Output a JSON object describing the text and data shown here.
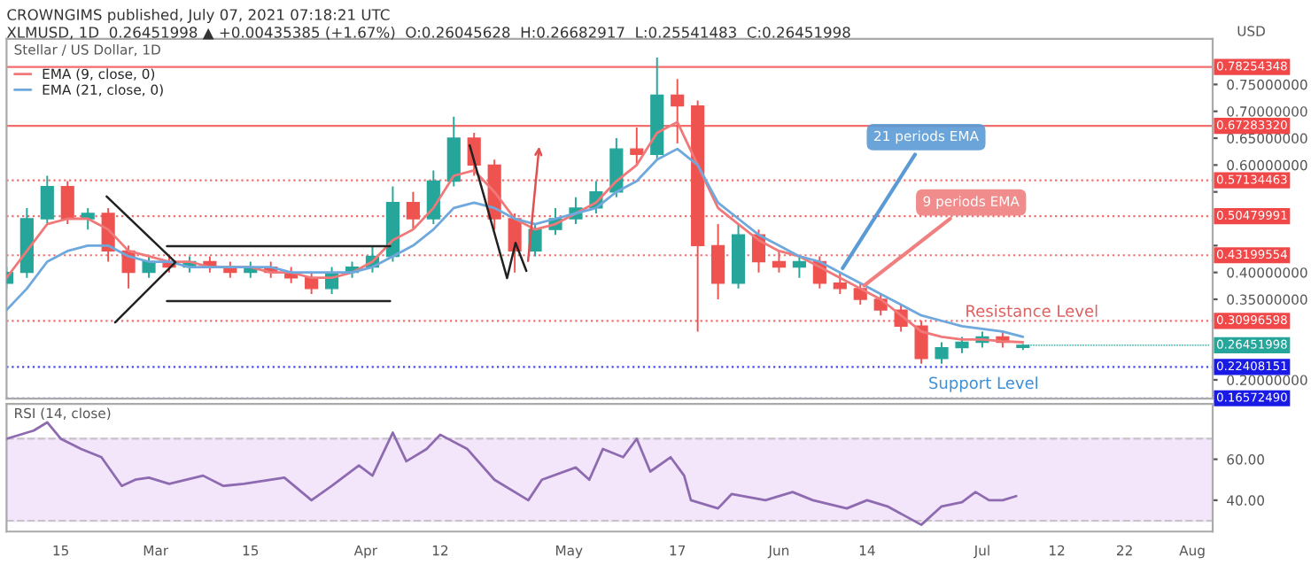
{
  "chart_data": [
    {
      "type": "candlestick",
      "title": "CROWNGIMS published, July 07, 2021 07:18:21 UTC",
      "subtitle": "XLMUSD, 1D  0.26451998 ▲ +0.00435385 (+1.67%)  O:0.26045628  H:0.26682917  L:0.25541483  C:0.26451998",
      "ylabel": "USD",
      "x": [
        "2021-02-07",
        "2021-02-10",
        "2021-02-13",
        "2021-02-16",
        "2021-02-19",
        "2021-02-22",
        "2021-02-25",
        "2021-02-28",
        "2021-03-03",
        "2021-03-06",
        "2021-03-09",
        "2021-03-12",
        "2021-03-15",
        "2021-03-18",
        "2021-03-21",
        "2021-03-24",
        "2021-03-27",
        "2021-03-30",
        "2021-04-02",
        "2021-04-05",
        "2021-04-08",
        "2021-04-11",
        "2021-04-14",
        "2021-04-17",
        "2021-04-20",
        "2021-04-23",
        "2021-04-26",
        "2021-04-29",
        "2021-05-02",
        "2021-05-05",
        "2021-05-08",
        "2021-05-11",
        "2021-05-14",
        "2021-05-17",
        "2021-05-20",
        "2021-05-23",
        "2021-05-26",
        "2021-05-29",
        "2021-06-01",
        "2021-06-04",
        "2021-06-07",
        "2021-06-10",
        "2021-06-13",
        "2021-06-16",
        "2021-06-19",
        "2021-06-22",
        "2021-06-25",
        "2021-06-28",
        "2021-07-01",
        "2021-07-04",
        "2021-07-07"
      ],
      "ohlc": [
        [
          0.38,
          0.41,
          0.37,
          0.4
        ],
        [
          0.4,
          0.52,
          0.39,
          0.5
        ],
        [
          0.5,
          0.58,
          0.49,
          0.56
        ],
        [
          0.56,
          0.57,
          0.49,
          0.5
        ],
        [
          0.5,
          0.52,
          0.48,
          0.51
        ],
        [
          0.51,
          0.52,
          0.42,
          0.44
        ],
        [
          0.44,
          0.45,
          0.37,
          0.4
        ],
        [
          0.4,
          0.43,
          0.39,
          0.42
        ],
        [
          0.42,
          0.43,
          0.4,
          0.41
        ],
        [
          0.41,
          0.43,
          0.4,
          0.42
        ],
        [
          0.42,
          0.43,
          0.4,
          0.41
        ],
        [
          0.41,
          0.42,
          0.39,
          0.4
        ],
        [
          0.4,
          0.42,
          0.39,
          0.41
        ],
        [
          0.41,
          0.42,
          0.39,
          0.4
        ],
        [
          0.4,
          0.41,
          0.38,
          0.39
        ],
        [
          0.39,
          0.4,
          0.36,
          0.37
        ],
        [
          0.37,
          0.41,
          0.36,
          0.4
        ],
        [
          0.4,
          0.42,
          0.39,
          0.41
        ],
        [
          0.41,
          0.45,
          0.4,
          0.43
        ],
        [
          0.43,
          0.56,
          0.42,
          0.53
        ],
        [
          0.53,
          0.55,
          0.48,
          0.5
        ],
        [
          0.5,
          0.59,
          0.49,
          0.57
        ],
        [
          0.57,
          0.69,
          0.56,
          0.65
        ],
        [
          0.65,
          0.66,
          0.58,
          0.6
        ],
        [
          0.6,
          0.61,
          0.48,
          0.5
        ],
        [
          0.5,
          0.51,
          0.4,
          0.44
        ],
        [
          0.44,
          0.49,
          0.43,
          0.48
        ],
        [
          0.48,
          0.52,
          0.47,
          0.5
        ],
        [
          0.5,
          0.54,
          0.49,
          0.52
        ],
        [
          0.52,
          0.57,
          0.51,
          0.55
        ],
        [
          0.55,
          0.65,
          0.54,
          0.63
        ],
        [
          0.63,
          0.67,
          0.6,
          0.62
        ],
        [
          0.62,
          0.8,
          0.61,
          0.73
        ],
        [
          0.73,
          0.76,
          0.64,
          0.71
        ],
        [
          0.71,
          0.72,
          0.29,
          0.45
        ],
        [
          0.45,
          0.49,
          0.35,
          0.38
        ],
        [
          0.38,
          0.49,
          0.37,
          0.47
        ],
        [
          0.47,
          0.48,
          0.4,
          0.42
        ],
        [
          0.42,
          0.44,
          0.4,
          0.41
        ],
        [
          0.41,
          0.43,
          0.39,
          0.42
        ],
        [
          0.42,
          0.43,
          0.37,
          0.38
        ],
        [
          0.38,
          0.4,
          0.36,
          0.37
        ],
        [
          0.37,
          0.38,
          0.34,
          0.35
        ],
        [
          0.35,
          0.36,
          0.32,
          0.33
        ],
        [
          0.33,
          0.34,
          0.29,
          0.3
        ],
        [
          0.3,
          0.31,
          0.23,
          0.24
        ],
        [
          0.24,
          0.27,
          0.23,
          0.26
        ],
        [
          0.26,
          0.28,
          0.25,
          0.27
        ],
        [
          0.27,
          0.29,
          0.26,
          0.28
        ],
        [
          0.28,
          0.29,
          0.26,
          0.27
        ],
        [
          0.26045628,
          0.26682917,
          0.25541483,
          0.26451998
        ]
      ],
      "colors": [
        "#26a69a",
        "#26a69a",
        "#26a69a",
        "#ef5350",
        "#26a69a",
        "#ef5350",
        "#ef5350",
        "#26a69a",
        "#ef5350",
        "#26a69a",
        "#ef5350",
        "#ef5350",
        "#26a69a",
        "#ef5350",
        "#ef5350",
        "#ef5350",
        "#26a69a",
        "#26a69a",
        "#26a69a",
        "#26a69a",
        "#ef5350",
        "#26a69a",
        "#26a69a",
        "#ef5350",
        "#ef5350",
        "#ef5350",
        "#26a69a",
        "#26a69a",
        "#26a69a",
        "#26a69a",
        "#26a69a",
        "#ef5350",
        "#26a69a",
        "#ef5350",
        "#ef5350",
        "#ef5350",
        "#26a69a",
        "#ef5350",
        "#ef5350",
        "#26a69a",
        "#ef5350",
        "#ef5350",
        "#ef5350",
        "#ef5350",
        "#ef5350",
        "#ef5350",
        "#26a69a",
        "#26a69a",
        "#26a69a",
        "#ef5350",
        "#26a69a"
      ],
      "series": [
        {
          "type": "line",
          "name": "EMA (9, close, 0)",
          "color": "#f07878",
          "values": [
            0.39,
            0.44,
            0.49,
            0.5,
            0.5,
            0.48,
            0.44,
            0.43,
            0.42,
            0.42,
            0.41,
            0.41,
            0.41,
            0.4,
            0.4,
            0.39,
            0.39,
            0.4,
            0.42,
            0.46,
            0.48,
            0.52,
            0.58,
            0.59,
            0.55,
            0.5,
            0.48,
            0.49,
            0.51,
            0.53,
            0.57,
            0.6,
            0.66,
            0.68,
            0.6,
            0.52,
            0.49,
            0.46,
            0.44,
            0.43,
            0.41,
            0.39,
            0.37,
            0.35,
            0.32,
            0.29,
            0.28,
            0.275,
            0.275,
            0.272,
            0.27
          ]
        },
        {
          "type": "line",
          "name": "EMA (21, close, 0)",
          "color": "#6fa8dc",
          "values": [
            0.33,
            0.37,
            0.42,
            0.44,
            0.45,
            0.45,
            0.43,
            0.42,
            0.42,
            0.41,
            0.41,
            0.41,
            0.41,
            0.41,
            0.4,
            0.4,
            0.4,
            0.4,
            0.41,
            0.43,
            0.45,
            0.48,
            0.52,
            0.53,
            0.52,
            0.5,
            0.49,
            0.5,
            0.51,
            0.52,
            0.55,
            0.57,
            0.61,
            0.63,
            0.6,
            0.53,
            0.5,
            0.47,
            0.45,
            0.43,
            0.42,
            0.4,
            0.38,
            0.36,
            0.34,
            0.32,
            0.31,
            0.3,
            0.295,
            0.29,
            0.28
          ]
        }
      ],
      "xlim": [
        "2021-02-07",
        "2021-08-04"
      ],
      "ylim": [
        0.165,
        0.835
      ],
      "yticks": [
        {
          "value": 0.75,
          "label": "0.75000000"
        },
        {
          "value": 0.7,
          "label": "0.70000000"
        },
        {
          "value": 0.65,
          "label": "0.65000000"
        },
        {
          "value": 0.6,
          "label": "0.60000000"
        },
        {
          "value": 0.55,
          "label": null
        },
        {
          "value": 0.45,
          "label": null
        },
        {
          "value": 0.4,
          "label": "0.40000000"
        },
        {
          "value": 0.35,
          "label": "0.35000000"
        },
        {
          "value": 0.2,
          "label": "0.20000000"
        }
      ],
      "tick_labels": "y",
      "legend": "top left",
      "ref_lines": [
        {
          "axis": "y",
          "value": 0.78254348,
          "label": "0.78254348",
          "color": "#f04848",
          "line_style": "solid"
        },
        {
          "axis": "y",
          "value": 0.6728332,
          "label": "0.67283320",
          "color": "#f04848",
          "line_style": "solid"
        },
        {
          "axis": "y",
          "value": 0.57134463,
          "label": "0.57134463",
          "color": "#f04848",
          "line_style": "dotted"
        },
        {
          "axis": "y",
          "value": 0.50479991,
          "label": "0.50479991",
          "color": "#f04848",
          "line_style": "dotted"
        },
        {
          "axis": "y",
          "value": 0.43199554,
          "label": "0.43199554",
          "color": "#f04848",
          "line_style": "dotted"
        },
        {
          "axis": "y",
          "value": 0.30996598,
          "label": "0.30996598",
          "color": "#f04848",
          "line_style": "dotted"
        },
        {
          "axis": "y",
          "value": 0.22408151,
          "label": "0.22408151",
          "color": "#1a1ae6",
          "line_style": "dotted"
        },
        {
          "axis": "y",
          "value": 0.1657249,
          "label": "0.16572490",
          "color": "#1a1ae6",
          "line_style": "dotted"
        }
      ],
      "annotations": [
        "Stellar / US Dollar, 1D",
        {
          "text": "21 periods EMA",
          "x": "2021-06-10",
          "y": 0.4
        },
        {
          "text": "9 periods EMA",
          "x": "2021-06-13",
          "y": 0.37
        },
        "Resistance Level",
        "Support Level",
        {
          "text": "0.26451998",
          "x": "2021-07-07",
          "y": 0.26451998
        }
      ]
    },
    {
      "type": "line",
      "title": "RSI (14, close)",
      "series": [
        {
          "color": "#8e6bb0",
          "x": [
            "2021-02-07",
            "2021-02-11",
            "2021-02-13",
            "2021-02-15",
            "2021-02-18",
            "2021-02-21",
            "2021-02-24",
            "2021-02-26",
            "2021-02-28",
            "2021-03-03",
            "2021-03-08",
            "2021-03-11",
            "2021-03-14",
            "2021-03-20",
            "2021-03-24",
            "2021-03-27",
            "2021-03-31",
            "2021-04-02",
            "2021-04-05",
            "2021-04-07",
            "2021-04-10",
            "2021-04-12",
            "2021-04-16",
            "2021-04-20",
            "2021-04-25",
            "2021-04-27",
            "2021-05-02",
            "2021-05-04",
            "2021-05-06",
            "2021-05-09",
            "2021-05-11",
            "2021-05-13",
            "2021-05-16",
            "2021-05-18",
            "2021-05-19",
            "2021-05-23",
            "2021-05-25",
            "2021-05-30",
            "2021-06-03",
            "2021-06-06",
            "2021-06-11",
            "2021-06-14",
            "2021-06-17",
            "2021-06-22",
            "2021-06-25",
            "2021-06-28",
            "2021-06-30",
            "2021-07-02",
            "2021-07-04",
            "2021-07-06"
          ],
          "values": [
            70,
            74,
            78,
            70,
            65,
            61,
            47,
            50,
            51,
            48,
            52,
            47,
            48,
            51,
            40,
            47,
            57,
            52,
            73,
            59,
            65,
            72,
            65,
            50,
            40,
            50,
            56,
            50,
            65,
            61,
            70,
            54,
            61,
            52,
            40,
            36,
            43,
            40,
            44,
            40,
            36,
            40,
            37,
            28,
            37,
            39,
            44,
            40,
            40,
            42
          ]
        }
      ],
      "xlim": [
        "2021-02-07",
        "2021-08-04"
      ],
      "ylim": [
        24.7,
        87
      ],
      "yticks": [
        {
          "value": 60,
          "label": "60.00"
        },
        {
          "value": 40,
          "label": "40.00"
        }
      ],
      "xticks": [
        {
          "value": "2021-02-15",
          "label": "15"
        },
        {
          "value": "2021-03-01",
          "label": "Mar"
        },
        {
          "value": "2021-03-15",
          "label": "15"
        },
        {
          "value": "2021-04-01",
          "label": "Apr"
        },
        {
          "value": "2021-04-12",
          "label": "12"
        },
        {
          "value": "2021-05-01",
          "label": "May"
        },
        {
          "value": "2021-05-17",
          "label": "17"
        },
        {
          "value": "2021-06-01",
          "label": "Jun"
        },
        {
          "value": "2021-06-14",
          "label": "14"
        },
        {
          "value": "2021-07-01",
          "label": "Jul"
        },
        {
          "value": "2021-07-12",
          "label": "12"
        },
        {
          "value": "2021-07-22",
          "label": "22"
        },
        {
          "value": "2021-08-01",
          "label": "Aug"
        }
      ],
      "bands": [
        {
          "axis": "y",
          "from": 30,
          "to": 70,
          "color": "#f3e6fb"
        }
      ],
      "ref_lines": [
        {
          "axis": "y",
          "value": 70,
          "color": "#bbbbbb",
          "line_style": "dashed"
        },
        {
          "axis": "y",
          "value": 30,
          "color": "#bbbbbb",
          "line_style": "dashed"
        }
      ]
    }
  ]
}
